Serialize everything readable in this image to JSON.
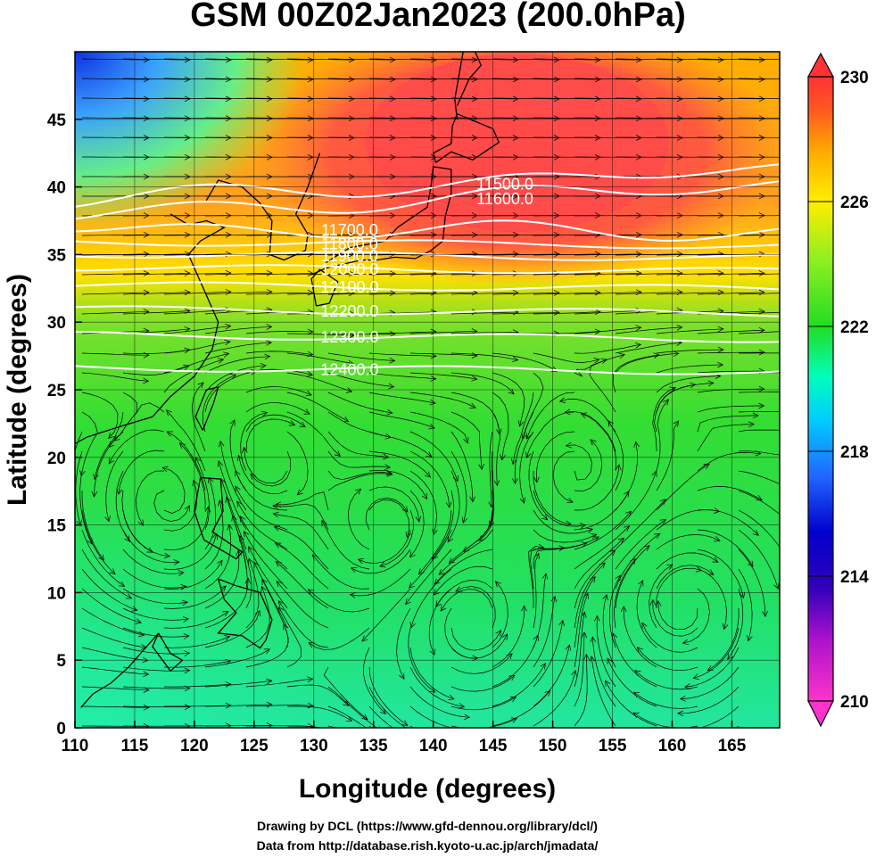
{
  "title": "GSM 00Z02Jan2023 (200.0hPa)",
  "xlabel": "Longitude (degrees)",
  "ylabel": "Latitude  (degrees)",
  "credits": [
    "Drawing by DCL (https://www.gfd-dennou.org/library/dcl/)",
    "Data from http://database.rish.kyoto-u.ac.jp/arch/jmadata/"
  ],
  "map": {
    "lon_range": [
      110,
      169
    ],
    "lat_range": [
      0,
      50
    ],
    "x_ticks": [
      "110",
      "115",
      "120",
      "125",
      "130",
      "135",
      "140",
      "145",
      "150",
      "155",
      "160",
      "165"
    ],
    "y_ticks": [
      "0",
      "5",
      "10",
      "15",
      "20",
      "25",
      "30",
      "35",
      "40",
      "45"
    ],
    "colorbar": {
      "range": [
        210,
        230
      ],
      "tick_labels": [
        "210",
        "214",
        "218",
        "222",
        "226",
        "230"
      ],
      "colors": [
        "#ff33cc",
        "#8800cc",
        "#0000bb",
        "#2266ff",
        "#00ccff",
        "#00ffbb",
        "#22dd22",
        "#88ee22",
        "#ffee00",
        "#ffaa00",
        "#ff5522",
        "#ff3333"
      ]
    },
    "contours": [
      {
        "label": "11500.0",
        "lon": 146,
        "lat": 40.2
      },
      {
        "label": "11600.0",
        "lon": 146,
        "lat": 39.1
      },
      {
        "label": "11700.0",
        "lon": 133,
        "lat": 36.8
      },
      {
        "label": "11800.0",
        "lon": 133,
        "lat": 35.8
      },
      {
        "label": "11900.0",
        "lon": 133,
        "lat": 34.9
      },
      {
        "label": "12000.0",
        "lon": 133,
        "lat": 33.9
      },
      {
        "label": "12100.0",
        "lon": 133,
        "lat": 32.6
      },
      {
        "label": "12200.0",
        "lon": 133,
        "lat": 30.8
      },
      {
        "label": "12300.0",
        "lon": 133,
        "lat": 28.9
      },
      {
        "label": "12400.0",
        "lon": 133,
        "lat": 26.5
      }
    ]
  }
}
